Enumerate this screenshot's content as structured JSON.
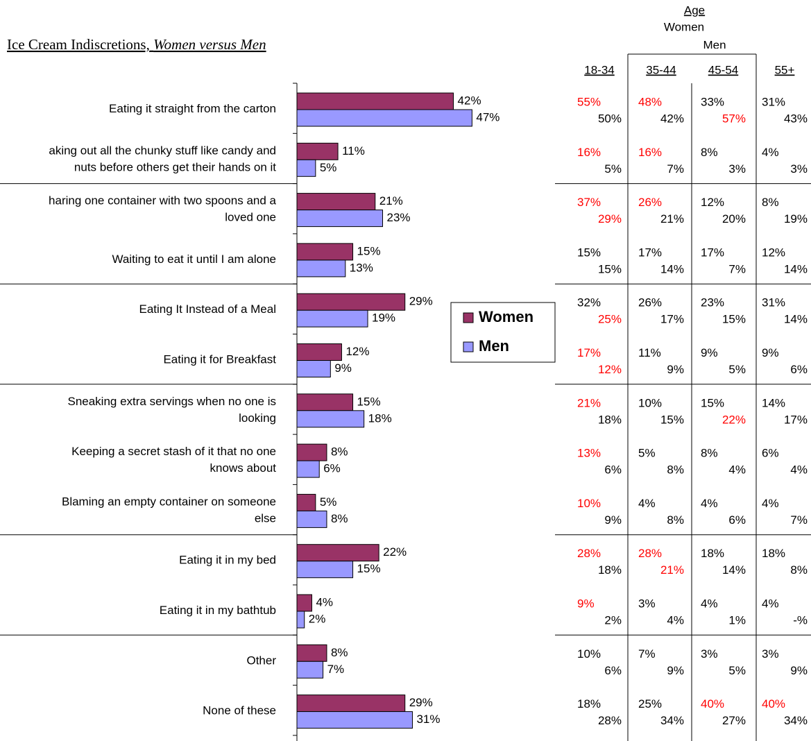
{
  "chart_data": {
    "type": "bar",
    "orientation": "horizontal",
    "title": "Ice Cream Indiscretions,",
    "title_emphasis": "Women versus Men",
    "categories": [
      [
        "Eating it straight from the carton"
      ],
      [
        "aking out all the chunky stuff like candy and",
        "nuts before others get their hands on it"
      ],
      [
        "haring one container with two spoons and a",
        "loved one"
      ],
      [
        "Waiting to eat it until I am alone"
      ],
      [
        "Eating It Instead of a Meal"
      ],
      [
        "Eating it for Breakfast"
      ],
      [
        "Sneaking extra servings when no one is",
        "looking"
      ],
      [
        "Keeping a secret stash of it that no one",
        "knows about"
      ],
      [
        "Blaming an empty container on someone",
        "else"
      ],
      [
        "Eating it in my bed"
      ],
      [
        "Eating it in my bathtub"
      ],
      [
        "Other"
      ],
      [
        "None of these"
      ]
    ],
    "series": [
      {
        "name": "Women",
        "color": "#993366",
        "values": [
          42,
          11,
          21,
          15,
          29,
          12,
          15,
          8,
          5,
          22,
          4,
          8,
          29
        ],
        "value_labels": [
          "42%",
          "11%",
          "21%",
          "15%",
          "29%",
          "12%",
          "15%",
          "8%",
          "5%",
          "22%",
          "4%",
          "8%",
          "29%"
        ]
      },
      {
        "name": "Men",
        "color": "#9999ff",
        "values": [
          47,
          5,
          23,
          13,
          19,
          9,
          18,
          6,
          8,
          15,
          2,
          7,
          31
        ],
        "value_labels": [
          "47%",
          "5%",
          "23%",
          "13%",
          "19%",
          "9%",
          "18%",
          "6%",
          "8%",
          "15%",
          "2%",
          "7%",
          "31%"
        ]
      }
    ],
    "legend": "inside-center"
  },
  "table": {
    "header": {
      "title": "Age",
      "row1": "Women",
      "row2": "Men"
    },
    "columns": [
      "18-34",
      "35-44",
      "45-54",
      "55+"
    ],
    "highlight_color": "#ff0000",
    "rows": [
      {
        "women": [
          "55%",
          "48%",
          "33%",
          "31%"
        ],
        "men": [
          "50%",
          "42%",
          "57%",
          "43%"
        ],
        "women_red": [
          0,
          1
        ],
        "men_red": [
          2
        ]
      },
      {
        "women": [
          "16%",
          "16%",
          "8%",
          "4%"
        ],
        "men": [
          "5%",
          "7%",
          "3%",
          "3%"
        ],
        "women_red": [
          0,
          1
        ],
        "men_red": []
      },
      {
        "women": [
          "37%",
          "26%",
          "12%",
          "8%"
        ],
        "men": [
          "29%",
          "21%",
          "20%",
          "19%"
        ],
        "women_red": [
          0,
          1
        ],
        "men_red": [
          0
        ]
      },
      {
        "women": [
          "15%",
          "17%",
          "17%",
          "12%"
        ],
        "men": [
          "15%",
          "14%",
          "7%",
          "14%"
        ],
        "women_red": [],
        "men_red": []
      },
      {
        "women": [
          "32%",
          "26%",
          "23%",
          "31%"
        ],
        "men": [
          "25%",
          "17%",
          "15%",
          "14%"
        ],
        "women_red": [],
        "men_red": [
          0
        ]
      },
      {
        "women": [
          "17%",
          "11%",
          "9%",
          "9%"
        ],
        "men": [
          "12%",
          "9%",
          "5%",
          "6%"
        ],
        "women_red": [
          0
        ],
        "men_red": [
          0
        ]
      },
      {
        "women": [
          "21%",
          "10%",
          "15%",
          "14%"
        ],
        "men": [
          "18%",
          "15%",
          "22%",
          "17%"
        ],
        "women_red": [
          0
        ],
        "men_red": [
          2
        ]
      },
      {
        "women": [
          "13%",
          "5%",
          "8%",
          "6%"
        ],
        "men": [
          "6%",
          "8%",
          "4%",
          "4%"
        ],
        "women_red": [
          0
        ],
        "men_red": []
      },
      {
        "women": [
          "10%",
          "4%",
          "4%",
          "4%"
        ],
        "men": [
          "9%",
          "8%",
          "6%",
          "7%"
        ],
        "women_red": [
          0
        ],
        "men_red": []
      },
      {
        "women": [
          "28%",
          "28%",
          "18%",
          "18%"
        ],
        "men": [
          "18%",
          "21%",
          "14%",
          "8%"
        ],
        "women_red": [
          0,
          1
        ],
        "men_red": [
          1
        ]
      },
      {
        "women": [
          "9%",
          "3%",
          "4%",
          "4%"
        ],
        "men": [
          "2%",
          "4%",
          "1%",
          "-%"
        ],
        "women_red": [
          0
        ],
        "men_red": []
      },
      {
        "women": [
          "10%",
          "7%",
          "3%",
          "3%"
        ],
        "men": [
          "6%",
          "9%",
          "5%",
          "9%"
        ],
        "women_red": [],
        "men_red": []
      },
      {
        "women": [
          "18%",
          "25%",
          "40%",
          "40%"
        ],
        "men": [
          "28%",
          "34%",
          "27%",
          "34%"
        ],
        "women_red": [
          2,
          3
        ],
        "men_red": []
      }
    ]
  }
}
